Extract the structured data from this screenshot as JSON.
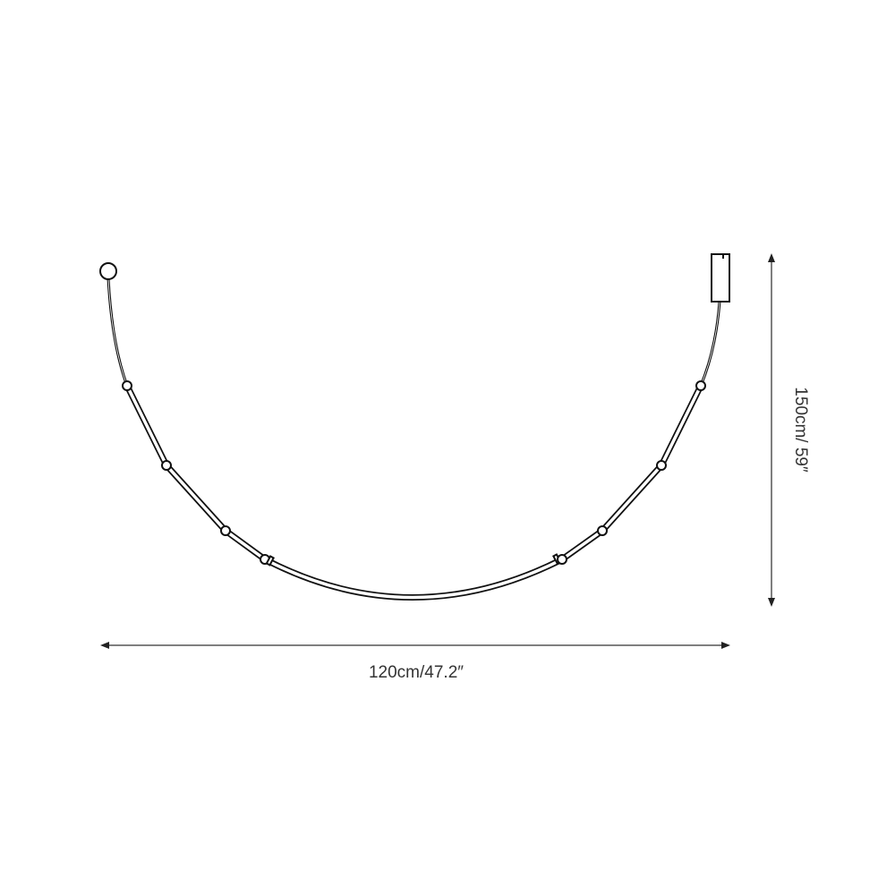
{
  "dimensions": {
    "width_label": "120cm/47.2″",
    "height_label": "150cm/ 59″"
  },
  "colors": {
    "line": "#111111",
    "dimension_line": "#555555",
    "background": "#ffffff"
  }
}
